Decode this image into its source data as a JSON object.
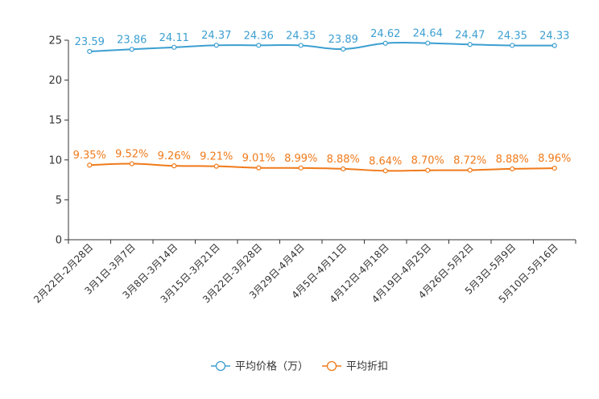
{
  "chart_data": {
    "type": "line",
    "title": "",
    "xlabel": "",
    "ylabel": "",
    "ylim": [
      0,
      25
    ],
    "yticks": [
      0,
      5,
      10,
      15,
      20,
      25
    ],
    "grid": false,
    "legend_position": "bottom-center",
    "categories": [
      "2月22日-2月28日",
      "3月1日-3月7日",
      "3月8日-3月14日",
      "3月15日-3月21日",
      "3月22日-3月28日",
      "3月29日-4月4日",
      "4月5日-4月11日",
      "4月12日-4月18日",
      "4月19日-4月25日",
      "4月26日-5月2日",
      "5月3日-5月9日",
      "5月10日-5月16日"
    ],
    "series": [
      {
        "name": "平均价格（万）",
        "color": "#3c9fd1",
        "values": [
          23.59,
          23.86,
          24.11,
          24.37,
          24.36,
          24.35,
          23.89,
          24.62,
          24.64,
          24.47,
          24.35,
          24.33
        ],
        "labels": [
          "23.59",
          "23.86",
          "24.11",
          "24.37",
          "24.36",
          "24.35",
          "23.89",
          "24.62",
          "24.64",
          "24.47",
          "24.35",
          "24.33"
        ]
      },
      {
        "name": "平均折扣",
        "color": "#f07a1a",
        "values": [
          9.35,
          9.52,
          9.26,
          9.21,
          9.01,
          8.99,
          8.88,
          8.64,
          8.7,
          8.72,
          8.88,
          8.96
        ],
        "labels": [
          "9.35%",
          "9.52%",
          "9.26%",
          "9.21%",
          "9.01%",
          "8.99%",
          "8.88%",
          "8.64%",
          "8.70%",
          "8.72%",
          "8.88%",
          "8.96%"
        ]
      }
    ]
  }
}
